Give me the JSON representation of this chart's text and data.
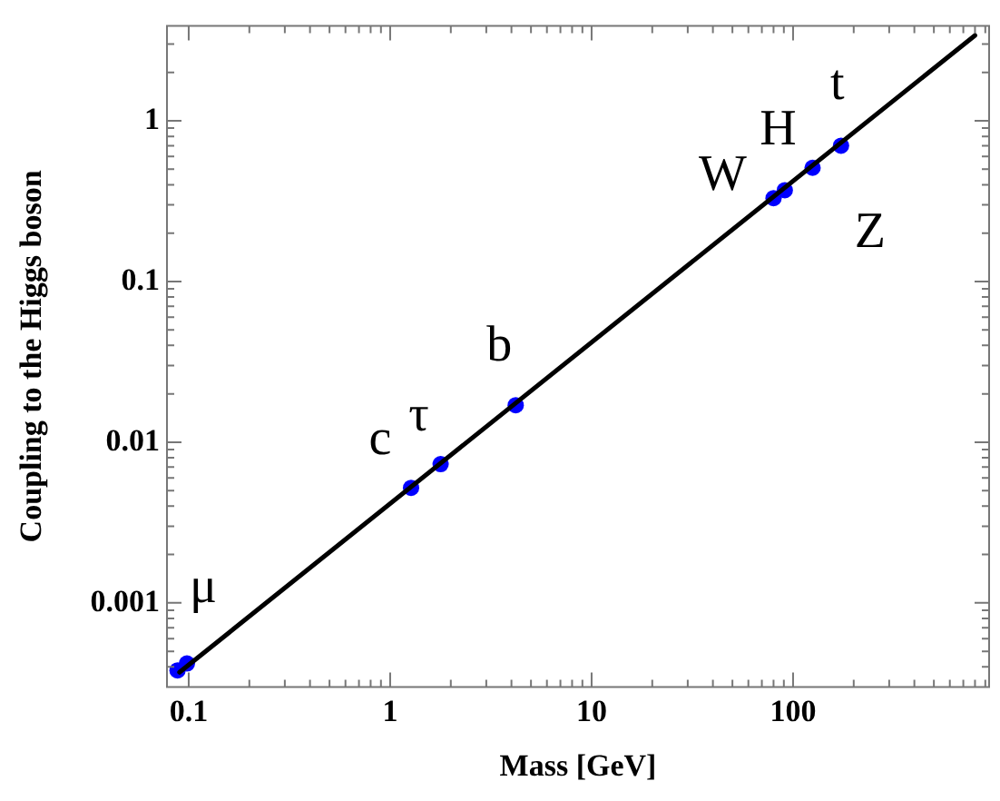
{
  "chart_data": {
    "type": "scatter",
    "xlabel": "Mass [GeV]",
    "ylabel": "Coupling to the Higgs boson",
    "log": "xy",
    "xlim": [
      0.078,
      940
    ],
    "ylim": [
      0.0003,
      3.9
    ],
    "xticks": [
      {
        "value": 0.1,
        "label": "0.1"
      },
      {
        "value": 0.2,
        "label": null
      },
      {
        "value": 0.3,
        "label": null
      },
      {
        "value": 0.4,
        "label": null
      },
      {
        "value": 0.5,
        "label": null
      },
      {
        "value": 0.6,
        "label": null
      },
      {
        "value": 0.7,
        "label": null
      },
      {
        "value": 0.8,
        "label": null
      },
      {
        "value": 0.9,
        "label": null
      },
      1,
      {
        "value": 2,
        "label": null
      },
      {
        "value": 3,
        "label": null
      },
      {
        "value": 4,
        "label": null
      },
      {
        "value": 5,
        "label": null
      },
      {
        "value": 6,
        "label": null
      },
      {
        "value": 7,
        "label": null
      },
      {
        "value": 8,
        "label": null
      },
      {
        "value": 9,
        "label": null
      },
      10,
      {
        "value": 20,
        "label": null
      },
      {
        "value": 30,
        "label": null
      },
      {
        "value": 40,
        "label": null
      },
      {
        "value": 50,
        "label": null
      },
      {
        "value": 60,
        "label": null
      },
      {
        "value": 70,
        "label": null
      },
      {
        "value": 80,
        "label": null
      },
      {
        "value": 90,
        "label": null
      },
      100,
      {
        "value": 200,
        "label": null
      },
      {
        "value": 300,
        "label": null
      },
      {
        "value": 400,
        "label": null
      },
      {
        "value": 500,
        "label": null
      },
      {
        "value": 600,
        "label": null
      },
      {
        "value": 700,
        "label": null
      },
      {
        "value": 800,
        "label": null
      },
      {
        "value": 900,
        "label": null
      }
    ],
    "yticks": [
      {
        "value": 0.0004,
        "label": null
      },
      {
        "value": 0.0005,
        "label": null
      },
      {
        "value": 0.0006,
        "label": null
      },
      {
        "value": 0.0007,
        "label": null
      },
      {
        "value": 0.0008,
        "label": null
      },
      {
        "value": 0.0009,
        "label": null
      },
      {
        "value": 0.001,
        "label": "0.001"
      },
      {
        "value": 0.002,
        "label": null
      },
      {
        "value": 0.003,
        "label": null
      },
      {
        "value": 0.004,
        "label": null
      },
      {
        "value": 0.005,
        "label": null
      },
      {
        "value": 0.006,
        "label": null
      },
      {
        "value": 0.007,
        "label": null
      },
      {
        "value": 0.008,
        "label": null
      },
      {
        "value": 0.009,
        "label": null
      },
      0.01,
      {
        "value": 0.02,
        "label": null
      },
      {
        "value": 0.03,
        "label": null
      },
      {
        "value": 0.04,
        "label": null
      },
      {
        "value": 0.05,
        "label": null
      },
      {
        "value": 0.06,
        "label": null
      },
      {
        "value": 0.07,
        "label": null
      },
      {
        "value": 0.08,
        "label": null
      },
      {
        "value": 0.09,
        "label": null
      },
      0.1,
      {
        "value": 0.2,
        "label": null
      },
      {
        "value": 0.3,
        "label": null
      },
      {
        "value": 0.4,
        "label": null
      },
      {
        "value": 0.5,
        "label": null
      },
      {
        "value": 0.6,
        "label": null
      },
      {
        "value": 0.7,
        "label": null
      },
      {
        "value": 0.8,
        "label": null
      },
      {
        "value": 0.9,
        "label": null
      },
      1,
      {
        "value": 2,
        "label": null
      },
      {
        "value": 3,
        "label": null
      }
    ],
    "grid": false,
    "legend": false,
    "series": [
      {
        "type": "line",
        "color": "#000000",
        "marker": "none",
        "line_style": "solid",
        "x": [
          0.09,
          800
        ],
        "values": [
          0.00037,
          3.4
        ]
      },
      {
        "type": "scatter",
        "color": "#0000ff",
        "marker": "circle",
        "x": [
          0.088,
          0.098,
          1.27,
          1.78,
          4.2,
          80,
          91,
          125,
          173
        ],
        "values": [
          0.00038,
          0.00042,
          0.0052,
          0.0073,
          0.017,
          0.33,
          0.37,
          0.51,
          0.7
        ]
      }
    ],
    "annotations": [
      {
        "text": "μ",
        "x": 0.098,
        "y": 0.00042
      },
      {
        "text": "c",
        "x": 1.27,
        "y": 0.0052
      },
      {
        "text": "τ",
        "x": 1.78,
        "y": 0.0073
      },
      {
        "text": "b",
        "x": 4.2,
        "y": 0.017
      },
      {
        "text": "W",
        "x": 80,
        "y": 0.33
      },
      {
        "text": "H",
        "x": 125,
        "y": 0.51
      },
      {
        "text": "t",
        "x": 173,
        "y": 0.7
      },
      {
        "text": "Z",
        "x": 91,
        "y": 0.37
      }
    ]
  }
}
